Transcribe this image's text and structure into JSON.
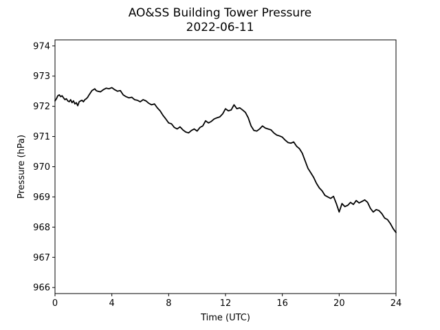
{
  "chart_data": {
    "type": "line",
    "title": "AO&SS Building Tower Pressure",
    "subtitle": "2022-06-11",
    "xlabel": "Time (UTC)",
    "ylabel": "Pressure (hPa)",
    "xlim": [
      0,
      24
    ],
    "ylim": [
      965.8,
      974.2
    ],
    "xticks": [
      0,
      4,
      8,
      12,
      16,
      20,
      24
    ],
    "yticks": [
      966,
      967,
      968,
      969,
      970,
      971,
      972,
      973,
      974
    ],
    "grid": false,
    "line_color": "#000000",
    "series": [
      {
        "x": [
          0.0,
          0.1,
          0.2,
          0.3,
          0.4,
          0.5,
          0.6,
          0.7,
          0.8,
          0.9,
          1.0,
          1.1,
          1.2,
          1.3,
          1.4,
          1.5,
          1.6,
          1.7,
          1.8,
          1.9,
          2.0,
          2.1,
          2.2,
          2.3,
          2.4,
          2.5,
          2.6,
          2.7,
          2.8,
          2.9,
          3.0,
          3.2,
          3.4,
          3.6,
          3.8,
          4.0,
          4.2,
          4.4,
          4.6,
          4.8,
          5.0,
          5.2,
          5.4,
          5.6,
          5.8,
          6.0,
          6.2,
          6.4,
          6.6,
          6.8,
          7.0,
          7.2,
          7.4,
          7.6,
          7.8,
          8.0,
          8.2,
          8.4,
          8.6,
          8.8,
          9.0,
          9.2,
          9.4,
          9.6,
          9.8,
          10.0,
          10.2,
          10.4,
          10.6,
          10.8,
          11.0,
          11.2,
          11.4,
          11.6,
          11.8,
          12.0,
          12.2,
          12.4,
          12.6,
          12.8,
          13.0,
          13.2,
          13.4,
          13.6,
          13.8,
          14.0,
          14.2,
          14.4,
          14.6,
          14.8,
          15.0,
          15.2,
          15.4,
          15.6,
          15.8,
          16.0,
          16.2,
          16.4,
          16.6,
          16.8,
          17.0,
          17.2,
          17.4,
          17.6,
          17.8,
          18.0,
          18.2,
          18.4,
          18.6,
          18.8,
          19.0,
          19.2,
          19.4,
          19.6,
          19.8,
          20.0,
          20.2,
          20.4,
          20.6,
          20.8,
          21.0,
          21.2,
          21.4,
          21.6,
          21.8,
          22.0,
          22.2,
          22.4,
          22.6,
          22.8,
          23.0,
          23.2,
          23.4,
          23.6,
          23.8,
          24.0
        ],
        "y": [
          972.18,
          972.25,
          972.35,
          972.38,
          972.32,
          972.35,
          972.28,
          972.22,
          972.25,
          972.18,
          972.15,
          972.22,
          972.12,
          972.18,
          972.08,
          972.12,
          972.02,
          972.15,
          972.18,
          972.2,
          972.15,
          972.22,
          972.25,
          972.3,
          972.38,
          972.45,
          972.52,
          972.55,
          972.58,
          972.52,
          972.5,
          972.48,
          972.55,
          972.6,
          972.58,
          972.62,
          972.55,
          972.5,
          972.52,
          972.38,
          972.32,
          972.28,
          972.3,
          972.22,
          972.2,
          972.15,
          972.22,
          972.18,
          972.1,
          972.05,
          972.08,
          971.95,
          971.85,
          971.7,
          971.58,
          971.45,
          971.42,
          971.3,
          971.25,
          971.32,
          971.22,
          971.15,
          971.12,
          971.2,
          971.25,
          971.18,
          971.3,
          971.35,
          971.52,
          971.45,
          971.5,
          971.58,
          971.62,
          971.65,
          971.75,
          971.92,
          971.85,
          971.88,
          972.05,
          971.92,
          971.95,
          971.88,
          971.8,
          971.62,
          971.35,
          971.2,
          971.18,
          971.25,
          971.35,
          971.28,
          971.25,
          971.22,
          971.12,
          971.05,
          971.02,
          970.98,
          970.88,
          970.8,
          970.78,
          970.82,
          970.68,
          970.6,
          970.45,
          970.2,
          969.95,
          969.8,
          969.65,
          969.45,
          969.3,
          969.2,
          969.05,
          969.0,
          968.95,
          969.02,
          968.78,
          968.5,
          968.78,
          968.68,
          968.72,
          968.82,
          968.75,
          968.88,
          968.8,
          968.85,
          968.9,
          968.82,
          968.62,
          968.5,
          968.58,
          968.55,
          968.45,
          968.3,
          968.25,
          968.12,
          967.95,
          967.82
        ]
      }
    ]
  }
}
